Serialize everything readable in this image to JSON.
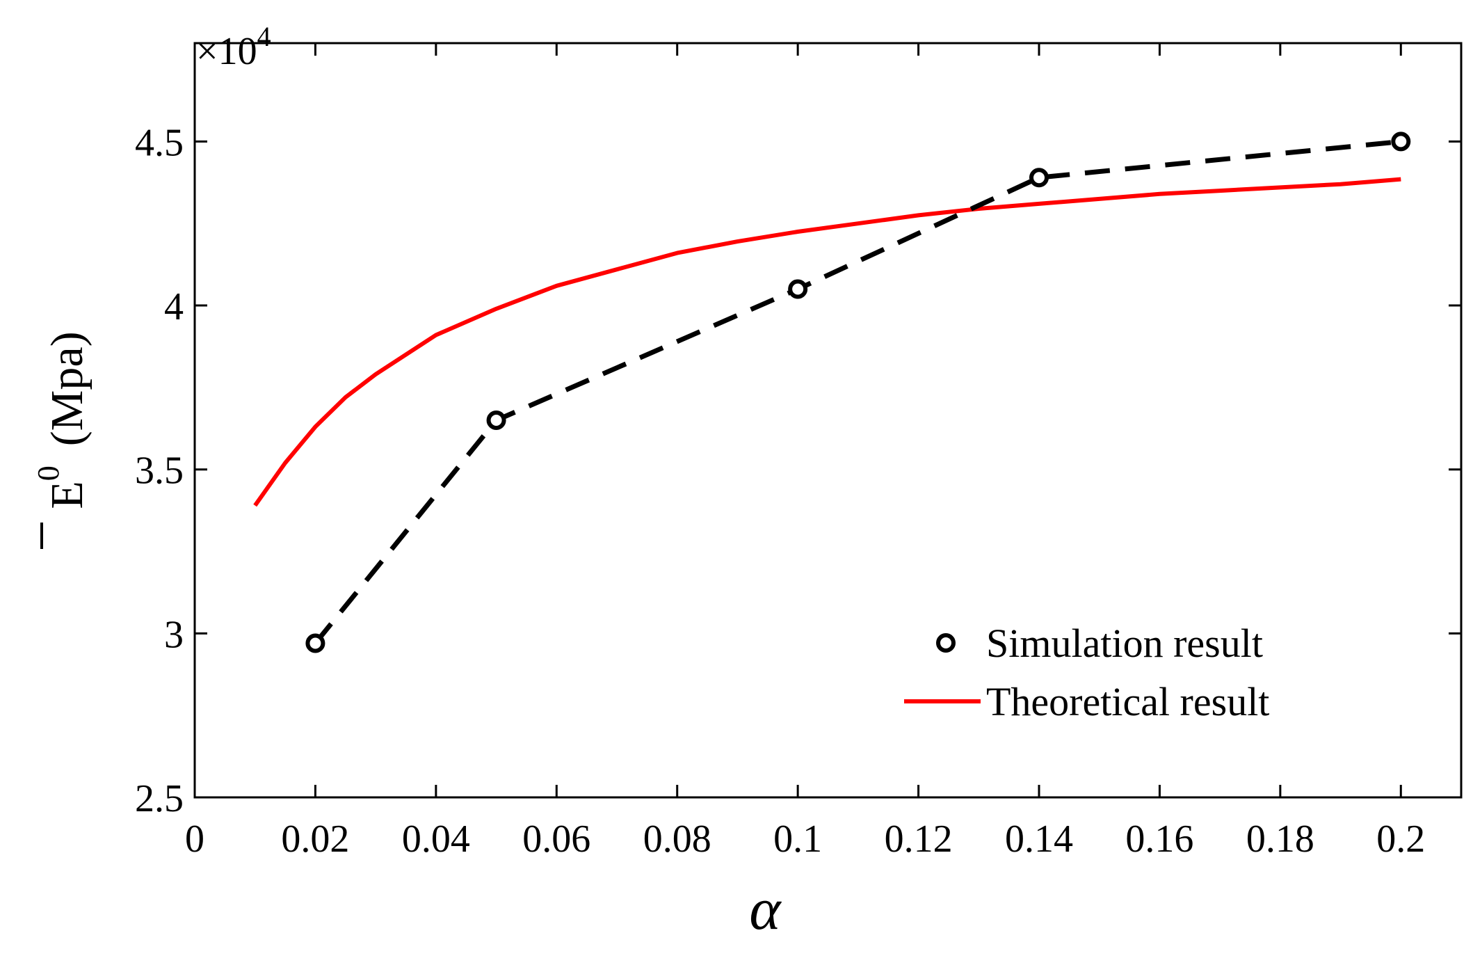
{
  "chart_data": {
    "type": "line",
    "title": "",
    "xlabel": "α",
    "ylabel": {
      "symbol": "E",
      "superscript": "0",
      "unit": "(Mpa)"
    },
    "y_multiplier": {
      "prefix": "×10",
      "exponent": "4"
    },
    "xlim": [
      0,
      0.21
    ],
    "ylim": [
      2.5,
      4.8
    ],
    "x_ticks": [
      0,
      0.02,
      0.04,
      0.06,
      0.08,
      0.1,
      0.12,
      0.14,
      0.16,
      0.18,
      0.2
    ],
    "x_tick_labels": [
      "0",
      "0.02",
      "0.04",
      "0.06",
      "0.08",
      "0.1",
      "0.12",
      "0.14",
      "0.16",
      "0.18",
      "0.2"
    ],
    "y_ticks": [
      2.5,
      3,
      3.5,
      4,
      4.5
    ],
    "y_tick_labels": [
      "2.5",
      "3",
      "3.5",
      "4",
      "4.5"
    ],
    "grid": false,
    "legend_position": "bottom-right",
    "series": [
      {
        "name": "Simulation result",
        "style": "dashed-markers",
        "color": "#000000",
        "x": [
          0.02,
          0.05,
          0.1,
          0.14,
          0.2
        ],
        "y": [
          2.97,
          3.65,
          4.05,
          4.39,
          4.5
        ]
      },
      {
        "name": "Theoretical result",
        "style": "solid",
        "color": "#ff0000",
        "x": [
          0.01,
          0.015,
          0.02,
          0.025,
          0.03,
          0.04,
          0.05,
          0.06,
          0.07,
          0.08,
          0.09,
          0.1,
          0.11,
          0.12,
          0.13,
          0.14,
          0.15,
          0.16,
          0.17,
          0.18,
          0.19,
          0.2
        ],
        "y": [
          3.39,
          3.52,
          3.63,
          3.72,
          3.79,
          3.91,
          3.99,
          4.06,
          4.11,
          4.16,
          4.195,
          4.225,
          4.25,
          4.275,
          4.295,
          4.31,
          4.325,
          4.34,
          4.35,
          4.36,
          4.37,
          4.385
        ]
      }
    ]
  }
}
